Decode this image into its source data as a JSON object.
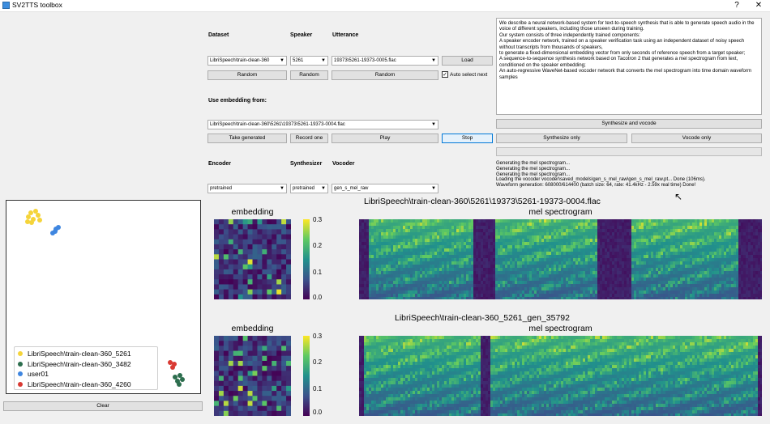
{
  "window": {
    "title": "SV2TTS toolbox",
    "help_label": "?",
    "close_label": "✕"
  },
  "labels": {
    "dataset": "Dataset",
    "speaker": "Speaker",
    "utterance": "Utterance",
    "use_embedding": "Use embedding from:",
    "encoder": "Encoder",
    "synthesizer": "Synthesizer",
    "vocoder": "Vocoder"
  },
  "combos": {
    "dataset": "LibriSpeech\\train-clean-360",
    "speaker": "5261",
    "utterance": "19373\\5261-19373-0005.flac",
    "embedding": "LibriSpeech\\train-clean-360\\5261\\19373\\5261-19373-0004.flac",
    "encoder": "pretrained",
    "synthesizer": "pretrained",
    "vocoder": "gen_s_mel_raw"
  },
  "buttons": {
    "load": "Load",
    "random_dataset": "Random",
    "random_speaker": "Random",
    "random_utterance": "Random",
    "take_generated": "Take generated",
    "record_one": "Record one",
    "play": "Play",
    "stop": "Stop",
    "synthesize_and_vocode": "Synthesize and vocode",
    "synthesize_only": "Synthesize only",
    "vocode_only": "Vocode only",
    "clear": "Clear"
  },
  "auto_select": {
    "label": "Auto select next",
    "checked_mark": "✓"
  },
  "text_input": "We describe a neural network-based system for text-to-speech synthesis that is able to generate speech audio in the voice of different speakers, including those unseen during training.\nOur system consists of three independently trained components:\nA speaker encoder network, trained on a speaker verification task using an independent dataset of noisy speech without transcripts from thousands of speakers,\nto generate a fixed-dimensional embedding vector from only seconds of reference speech from a target speaker;\nA sequence-to-sequence synthesis network based on Tacotron 2 that generates a mel spectrogram from text, conditioned on the speaker embedding;\nAn auto-regressive WaveNet-based vocoder network that converts the mel spectrogram into time domain waveform samples",
  "log": "Generating the mel spectrogram...\nGenerating the mel spectrogram...\nGenerating the mel spectrogram...\nLoading the vocoder vocoder\\saved_models\\gen_s_mel_raw\\gen_s_mel_raw.pt... Done (106ms).\nWaveform generation: 608000/614400 (batch size: 64, rate: 41.4kHz - 2.59x real time) Done!",
  "legend": [
    {
      "name": "LibriSpeech\\train-clean-360_5261",
      "color": "#f5d43a"
    },
    {
      "name": "LibriSpeech\\train-clean-360_3482",
      "color": "#2d6e4e"
    },
    {
      "name": "user01",
      "color": "#3f86e0"
    },
    {
      "name": "LibriSpeech\\train-clean-360_4260",
      "color": "#d93a33"
    }
  ],
  "plots": {
    "top": {
      "filename": "LibriSpeech\\train-clean-360\\5261\\19373\\5261-19373-0004.flac",
      "embedding_title": "embedding",
      "spec_title": "mel spectrogram"
    },
    "bottom": {
      "filename": "LibriSpeech\\train-clean-360_5261_gen_35792",
      "embedding_title": "embedding",
      "spec_title": "mel spectrogram"
    },
    "colorbar_ticks": [
      "0.3",
      "0.2",
      "0.1",
      "0.0"
    ]
  },
  "colors": {
    "viridis_low": "#440154",
    "viridis_mid": "#21918c",
    "viridis_high": "#fde725",
    "accent": "#0078d7"
  }
}
